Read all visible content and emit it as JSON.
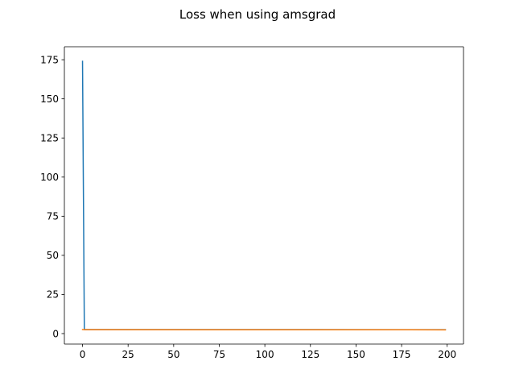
{
  "chart_data": {
    "type": "line",
    "title": "Loss when using amsgrad",
    "xlabel": "",
    "ylabel": "",
    "xlim": [
      -9.95,
      208.95
    ],
    "ylim": [
      -6.7,
      183.3
    ],
    "xticks": [
      0,
      25,
      50,
      75,
      100,
      125,
      150,
      175,
      200
    ],
    "yticks": [
      0,
      25,
      50,
      75,
      100,
      125,
      150,
      175
    ],
    "grid": false,
    "legend": "none",
    "series": [
      {
        "color": "#1f77b4",
        "points": [
          [
            0,
            174.0
          ],
          [
            1,
            2.6
          ],
          [
            199,
            2.5
          ]
        ]
      },
      {
        "color": "#ff7f0e",
        "points": [
          [
            0,
            2.6
          ],
          [
            1,
            2.5
          ],
          [
            199,
            2.4
          ]
        ]
      }
    ]
  }
}
